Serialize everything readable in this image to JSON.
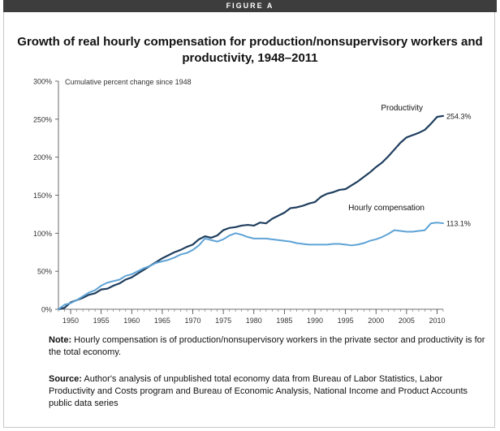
{
  "figure_label": "FIGURE A",
  "chart_data": {
    "type": "line",
    "title": "Growth of real hourly compensation for production/nonsupervisory workers and productivity, 1948–2011",
    "ylabel": "Cumulative percent change since 1948",
    "xlim": [
      1948,
      2011
    ],
    "ylim": [
      0,
      300
    ],
    "yticks": [
      0,
      50,
      100,
      150,
      200,
      250,
      300
    ],
    "ytick_labels": [
      "0%",
      "50%",
      "100%",
      "150%",
      "200%",
      "250%",
      "300%"
    ],
    "xticks": [
      1950,
      1955,
      1960,
      1965,
      1970,
      1975,
      1980,
      1985,
      1990,
      1995,
      2000,
      2005,
      2010
    ],
    "grid": false,
    "colors": {
      "productivity": "#1f3e5e",
      "hourly_compensation": "#5ea3d6"
    },
    "series": [
      {
        "name": "Productivity",
        "end_label": "254.3%",
        "x": [
          1948,
          1949,
          1950,
          1951,
          1952,
          1953,
          1954,
          1955,
          1956,
          1957,
          1958,
          1959,
          1960,
          1961,
          1962,
          1963,
          1964,
          1965,
          1966,
          1967,
          1968,
          1969,
          1970,
          1971,
          1972,
          1973,
          1974,
          1975,
          1976,
          1977,
          1978,
          1979,
          1980,
          1981,
          1982,
          1983,
          1984,
          1985,
          1986,
          1987,
          1988,
          1989,
          1990,
          1991,
          1992,
          1993,
          1994,
          1995,
          1996,
          1997,
          1998,
          1999,
          2000,
          2001,
          2002,
          2003,
          2004,
          2005,
          2006,
          2007,
          2008,
          2009,
          2010,
          2011
        ],
        "y": [
          0,
          2,
          9,
          12,
          15,
          19,
          21,
          26,
          27,
          31,
          34,
          39,
          42,
          47,
          52,
          57,
          62,
          67,
          71,
          75,
          78,
          82,
          85,
          92,
          96,
          94,
          97,
          104,
          107,
          108,
          110,
          111,
          110,
          114,
          113,
          119,
          123,
          127,
          133,
          134,
          136,
          139,
          141,
          148,
          152,
          154,
          157,
          158,
          163,
          168,
          174,
          180,
          187,
          193,
          201,
          210,
          219,
          226,
          229,
          232,
          236,
          244,
          253,
          254.3
        ]
      },
      {
        "name": "Hourly compensation",
        "end_label": "113.1%",
        "x": [
          1948,
          1949,
          1950,
          1951,
          1952,
          1953,
          1954,
          1955,
          1956,
          1957,
          1958,
          1959,
          1960,
          1961,
          1962,
          1963,
          1964,
          1965,
          1966,
          1967,
          1968,
          1969,
          1970,
          1971,
          1972,
          1973,
          1974,
          1975,
          1976,
          1977,
          1978,
          1979,
          1980,
          1981,
          1982,
          1983,
          1984,
          1985,
          1986,
          1987,
          1988,
          1989,
          1990,
          1991,
          1992,
          1993,
          1994,
          1995,
          1996,
          1997,
          1998,
          1999,
          2000,
          2001,
          2002,
          2003,
          2004,
          2005,
          2006,
          2007,
          2008,
          2009,
          2010,
          2011
        ],
        "y": [
          0,
          6,
          8,
          12,
          17,
          22,
          25,
          31,
          35,
          37,
          39,
          44,
          46,
          50,
          54,
          57,
          61,
          63,
          65,
          68,
          72,
          74,
          78,
          84,
          93,
          91,
          89,
          92,
          97,
          100,
          98,
          95,
          93,
          93,
          93,
          92,
          91,
          90,
          89,
          87,
          86,
          85,
          85,
          85,
          85,
          86,
          86,
          85,
          84,
          85,
          87,
          90,
          92,
          95,
          99,
          104,
          103,
          102,
          102,
          103,
          104,
          113,
          114,
          113.1
        ]
      }
    ]
  },
  "notes": {
    "note_label": "Note:",
    "note_text": " Hourly compensation is of production/nonsupervisory workers in the private sector and productivity is for the total economy.",
    "source_label": "Source:",
    "source_text": " Author's analysis of unpublished total economy data from Bureau of Labor Statistics, Labor Productivity and Costs program and Bureau of Economic Analysis, National Income and Product Accounts public data series"
  }
}
